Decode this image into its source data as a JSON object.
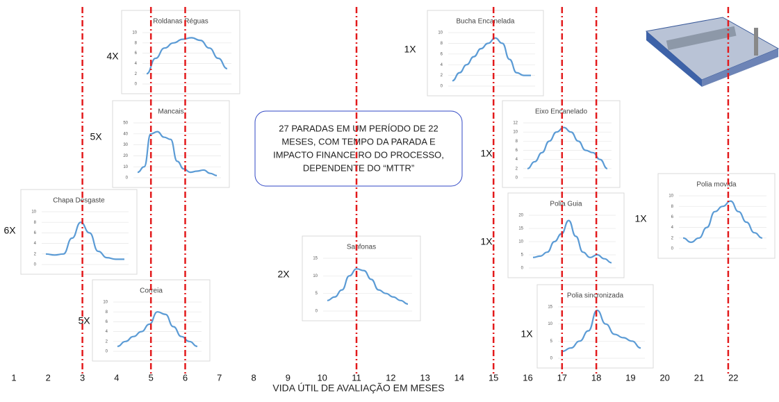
{
  "axis": {
    "title": "VIDA ÚTIL DE AVALIAÇÃO EM MESES",
    "months": [
      1,
      2,
      3,
      4,
      5,
      6,
      7,
      8,
      9,
      10,
      11,
      12,
      13,
      14,
      15,
      16,
      17,
      18,
      19,
      20,
      21,
      22
    ]
  },
  "marker_months": [
    3,
    5,
    6,
    11,
    15,
    17,
    18,
    21.85
  ],
  "note": [
    "27 PARADAS EM UM PERÍODO DE 22",
    "MESES, COM TEMPO DA PARADA E",
    "IMPACTO FINANCEIRO DO PROCESSO,",
    "DEPENDENTE DO “MTTR”"
  ],
  "charts": [
    {
      "title": "Roldanas Réguas",
      "count": "4X",
      "ylim": [
        0,
        10
      ],
      "yticks": [
        0,
        2,
        4,
        6,
        8,
        10
      ],
      "values": [
        2,
        5,
        7,
        8,
        8.7,
        9,
        8.5,
        7,
        5,
        3
      ]
    },
    {
      "title": "Mancais",
      "count": "5X",
      "ylim": [
        0,
        50
      ],
      "yticks": [
        0,
        10,
        20,
        30,
        40,
        50
      ],
      "values": [
        5,
        10,
        40,
        42,
        37,
        35,
        15,
        8,
        5,
        6,
        7,
        4,
        2
      ]
    },
    {
      "title": "Chapa Desgaste",
      "count": "6X",
      "ylim": [
        0,
        10
      ],
      "yticks": [
        0,
        2,
        4,
        6,
        8,
        10
      ],
      "values": [
        2,
        1.8,
        2,
        5,
        8,
        6,
        2.5,
        1.3,
        1,
        1
      ]
    },
    {
      "title": "Correia",
      "count": "5X",
      "ylim": [
        0,
        10
      ],
      "yticks": [
        0,
        2,
        4,
        6,
        8,
        10
      ],
      "values": [
        1,
        2,
        3,
        4,
        5.5,
        8,
        7.5,
        5,
        3,
        2,
        1
      ]
    },
    {
      "title": "Sanfonas",
      "count": "2X",
      "ylim": [
        0,
        15
      ],
      "yticks": [
        0,
        5,
        10,
        15
      ],
      "values": [
        3,
        4,
        6,
        10,
        12,
        11.5,
        9,
        6,
        5,
        4,
        3,
        2
      ]
    },
    {
      "title": "Bucha Encanelada",
      "count": "1X",
      "ylim": [
        0,
        10
      ],
      "yticks": [
        0,
        2,
        4,
        6,
        8,
        10
      ],
      "values": [
        1,
        2.5,
        4,
        5.5,
        7,
        8,
        9,
        8,
        5,
        2.5,
        2,
        2
      ]
    },
    {
      "title": "Eixo Encanelado",
      "count": "1X",
      "ylim": [
        0,
        12
      ],
      "yticks": [
        0,
        2,
        4,
        6,
        8,
        10,
        12
      ],
      "values": [
        2,
        3.5,
        5.5,
        8,
        10,
        11,
        10,
        8,
        6,
        5.5,
        4,
        2
      ]
    },
    {
      "title": "Polia Guia",
      "count": "1X",
      "ylim": [
        0,
        20
      ],
      "yticks": [
        0,
        5,
        10,
        15,
        20
      ],
      "values": [
        4,
        4.5,
        6,
        10,
        13,
        18,
        12,
        6,
        4,
        5,
        3.5,
        2
      ]
    },
    {
      "title": "Polia movida",
      "count": "1X",
      "ylim": [
        0,
        10
      ],
      "yticks": [
        0,
        2,
        4,
        6,
        8,
        10
      ],
      "values": [
        2,
        1.2,
        2,
        4,
        7,
        8,
        9,
        7,
        5,
        3,
        2
      ]
    },
    {
      "title": "Polia sincronizada",
      "count": "1X",
      "ylim": [
        0,
        15
      ],
      "yticks": [
        0,
        5,
        10,
        15
      ],
      "values": [
        2,
        3,
        5,
        8,
        14,
        10,
        7,
        6,
        5,
        3
      ]
    }
  ]
}
